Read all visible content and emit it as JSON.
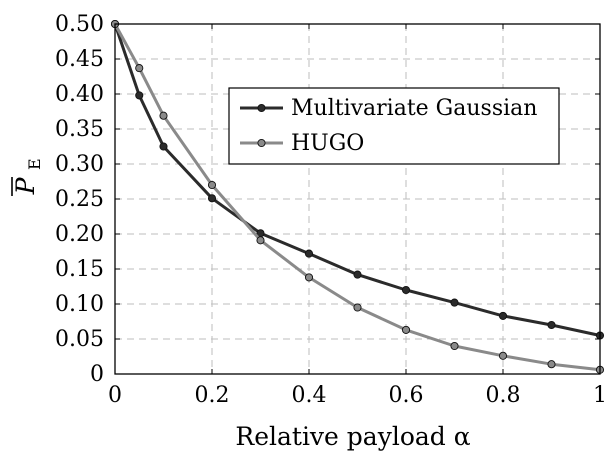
{
  "chart_data": {
    "type": "line",
    "title": "",
    "xlabel": "Relative payload α",
    "ylabel": "P",
    "ylabel_subscript": "E",
    "xlim": [
      0,
      1
    ],
    "ylim": [
      0,
      0.5
    ],
    "x_ticks": [
      0,
      0.2,
      0.4,
      0.6,
      0.8,
      1
    ],
    "x_tick_labels": [
      "0",
      "0.2",
      "0.4",
      "0.6",
      "0.8",
      "1"
    ],
    "y_ticks": [
      0,
      0.05,
      0.1,
      0.15,
      0.2,
      0.25,
      0.3,
      0.35,
      0.4,
      0.45,
      0.5
    ],
    "y_tick_labels": [
      "0",
      "0.05",
      "0.10",
      "0.15",
      "0.20",
      "0.25",
      "0.30",
      "0.35",
      "0.40",
      "0.45",
      "0.50"
    ],
    "grid": true,
    "legend_position": "upper-right",
    "series": [
      {
        "name": "Multivariate Gaussian",
        "color": "#2b2b2b",
        "x": [
          0,
          0.05,
          0.1,
          0.2,
          0.3,
          0.4,
          0.5,
          0.6,
          0.7,
          0.8,
          0.9,
          1.0
        ],
        "y": [
          0.5,
          0.398,
          0.325,
          0.251,
          0.201,
          0.172,
          0.142,
          0.12,
          0.102,
          0.083,
          0.07,
          0.055
        ]
      },
      {
        "name": "HUGO",
        "color": "#8a8a8a",
        "x": [
          0,
          0.05,
          0.1,
          0.2,
          0.3,
          0.4,
          0.5,
          0.6,
          0.7,
          0.8,
          0.9,
          1.0
        ],
        "y": [
          0.5,
          0.437,
          0.369,
          0.27,
          0.191,
          0.138,
          0.095,
          0.063,
          0.04,
          0.026,
          0.014,
          0.006
        ]
      }
    ]
  }
}
